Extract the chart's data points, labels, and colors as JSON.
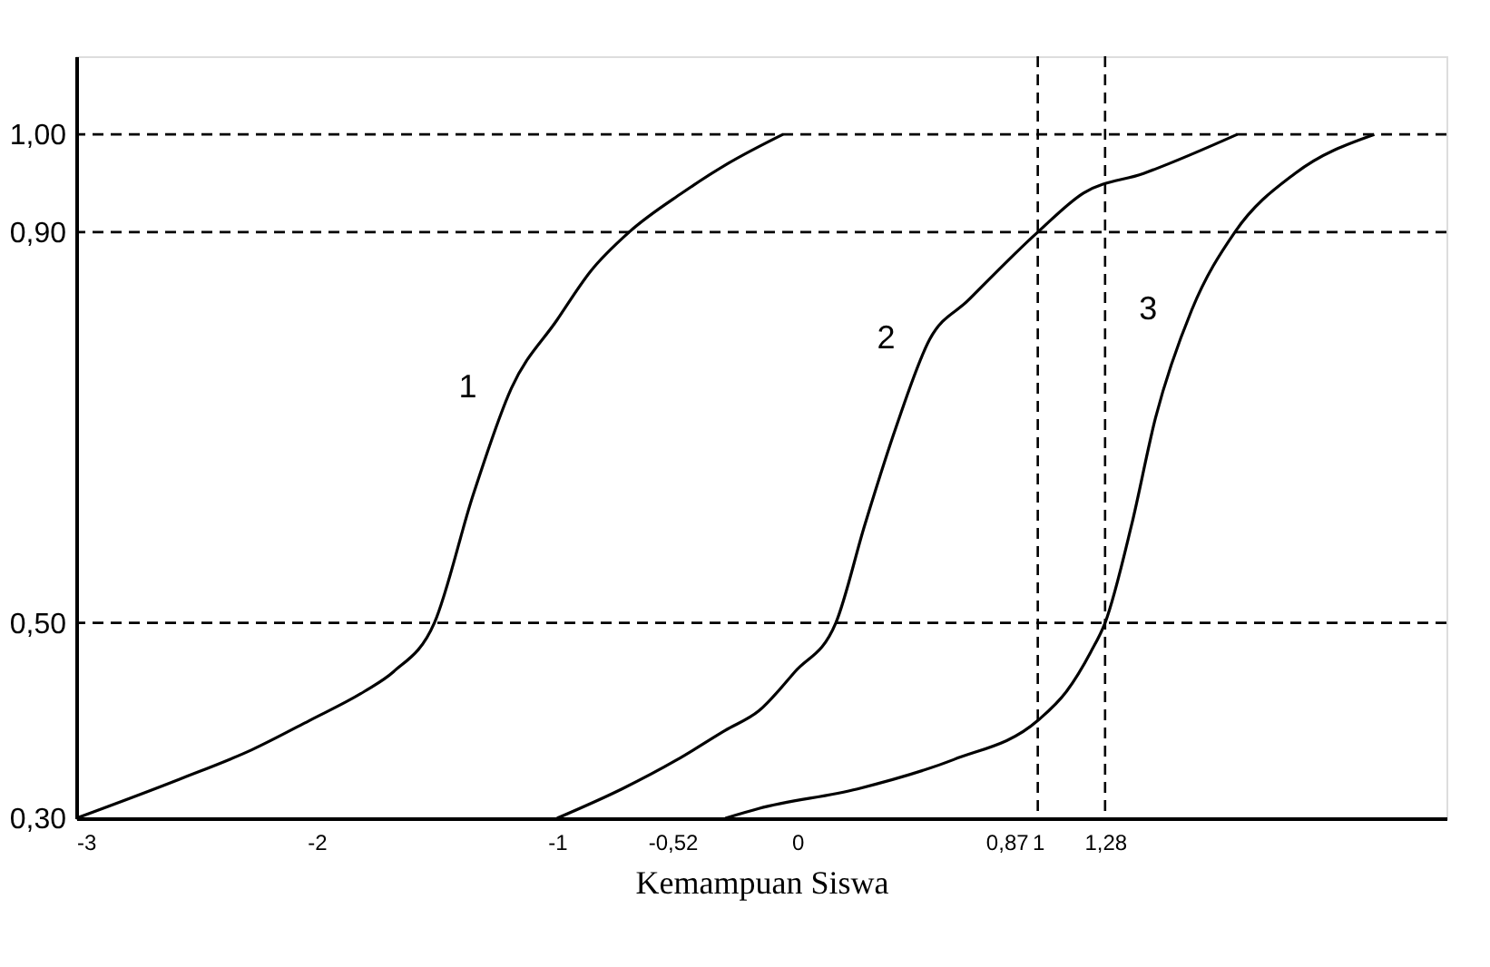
{
  "chart_data": {
    "type": "line",
    "xlabel": "Kemampuan Siswa",
    "xlim": [
      -3,
      2.7
    ],
    "ylim": [
      0.3,
      1.08
    ],
    "xticks": [
      {
        "value": -3,
        "label": "-3"
      },
      {
        "value": -2,
        "label": "-2"
      },
      {
        "value": -1,
        "label": "-1"
      },
      {
        "value": -0.52,
        "label": "-0,52"
      },
      {
        "value": 0,
        "label": "0"
      },
      {
        "value": 0.87,
        "label": "0,87"
      },
      {
        "value": 1,
        "label": "1"
      },
      {
        "value": 1.28,
        "label": "1,28"
      }
    ],
    "yticks": [
      {
        "value": 0.3,
        "label": "0,30"
      },
      {
        "value": 0.5,
        "label": "0,50"
      },
      {
        "value": 0.9,
        "label": "0,90"
      },
      {
        "value": 1,
        "label": "1,00"
      }
    ],
    "grid": false,
    "legend": false,
    "marker": "none",
    "line_style": "solid",
    "series": [
      {
        "name": "1",
        "color": "#000000",
        "x": [
          -3,
          -2.57,
          -2.27,
          -2.03,
          -1.8,
          -1.68,
          -1.51,
          -1.35,
          -1.19,
          -1.0,
          -0.86,
          -0.7,
          -0.48,
          -0.29,
          -0.06
        ],
        "values": [
          0.3,
          0.34,
          0.37,
          0.4,
          0.43,
          0.45,
          0.5,
          0.63,
          0.74,
          0.81,
          0.86,
          0.9,
          0.94,
          0.97,
          1.0
        ]
      },
      {
        "name": "2",
        "color": "#000000",
        "x": [
          -1.0,
          -0.73,
          -0.5,
          -0.3,
          -0.16,
          -0.01,
          0.16,
          0.28,
          0.41,
          0.55,
          0.71,
          1.0,
          1.19,
          1.44,
          1.83
        ],
        "values": [
          0.3,
          0.33,
          0.36,
          0.39,
          0.41,
          0.45,
          0.5,
          0.6,
          0.7,
          0.79,
          0.83,
          0.9,
          0.94,
          0.96,
          1.0
        ]
      },
      {
        "name": "3",
        "color": "#000000",
        "x": [
          -0.3,
          -0.16,
          0.25,
          0.65,
          1.0,
          1.12,
          1.22,
          1.28,
          1.39,
          1.49,
          1.64,
          1.82,
          2.07,
          2.4
        ],
        "values": [
          0.3,
          0.31,
          0.33,
          0.36,
          0.4,
          0.43,
          0.47,
          0.5,
          0.6,
          0.71,
          0.82,
          0.9,
          0.96,
          1.0
        ]
      }
    ],
    "ref_lines": [
      {
        "axis": "y",
        "value": 1.0,
        "line_style": "dashed"
      },
      {
        "axis": "y",
        "value": 0.9,
        "line_style": "dashed"
      },
      {
        "axis": "y",
        "value": 0.5,
        "line_style": "dashed"
      },
      {
        "axis": "x",
        "value": 1,
        "line_style": "dashed"
      },
      {
        "axis": "x",
        "value": 1.28,
        "line_style": "dashed"
      }
    ]
  }
}
